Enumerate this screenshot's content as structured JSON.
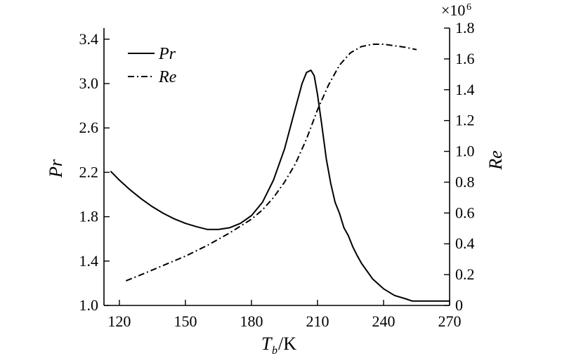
{
  "chart_data": {
    "type": "line",
    "xlabel_main": "T",
    "xlabel_sub": "b",
    "xlabel_unit": "/K",
    "ylabel_left": "Pr",
    "ylabel_right": "Re",
    "right_multiplier_base": "×10",
    "right_multiplier_exp": "6",
    "xlim": [
      113,
      270
    ],
    "ylim_left": [
      1.0,
      3.5
    ],
    "ylim_right": [
      0,
      1.8
    ],
    "x_ticks": [
      120,
      150,
      180,
      210,
      240,
      270
    ],
    "x_tick_labels": [
      "120",
      "150",
      "180",
      "210",
      "240",
      "270"
    ],
    "y_left_ticks": [
      1.0,
      1.4,
      1.8,
      2.2,
      2.6,
      3.0,
      3.4
    ],
    "y_left_tick_labels": [
      "1.0",
      "1.4",
      "1.8",
      "2.2",
      "2.6",
      "3.0",
      "3.4"
    ],
    "y_right_ticks": [
      0,
      0.2,
      0.4,
      0.6,
      0.8,
      1.0,
      1.2,
      1.4,
      1.6,
      1.8
    ],
    "y_right_tick_labels": [
      "0",
      "0.2",
      "0.4",
      "0.6",
      "0.8",
      "1.0",
      "1.2",
      "1.4",
      "1.6",
      "1.8"
    ],
    "grid": false,
    "legend_position": "top-left",
    "series": [
      {
        "name": "Pr",
        "axis": "left",
        "style": "solid",
        "x": [
          116,
          120,
          125,
          130,
          135,
          140,
          145,
          150,
          155,
          160,
          165,
          170,
          175,
          180,
          185,
          190,
          195,
          200,
          203,
          205,
          207,
          208.5,
          210,
          212,
          214,
          216,
          218,
          220,
          222,
          224,
          226,
          228,
          230,
          235,
          240,
          245,
          250,
          253,
          256,
          270
        ],
        "y": [
          2.21,
          2.13,
          2.04,
          1.96,
          1.89,
          1.83,
          1.78,
          1.74,
          1.71,
          1.685,
          1.685,
          1.7,
          1.74,
          1.81,
          1.93,
          2.13,
          2.41,
          2.78,
          3.0,
          3.1,
          3.12,
          3.07,
          2.9,
          2.62,
          2.32,
          2.1,
          1.93,
          1.83,
          1.7,
          1.63,
          1.53,
          1.45,
          1.38,
          1.24,
          1.15,
          1.09,
          1.06,
          1.04,
          1.04,
          1.04
        ]
      },
      {
        "name": "Re",
        "axis": "right",
        "style": "dashdot",
        "x": [
          123,
          130,
          140,
          150,
          160,
          170,
          180,
          185,
          190,
          195,
          200,
          205,
          210,
          215,
          220,
          225,
          230,
          235,
          240,
          245,
          250,
          255
        ],
        "y": [
          0.16,
          0.2,
          0.26,
          0.32,
          0.39,
          0.47,
          0.56,
          0.62,
          0.7,
          0.8,
          0.92,
          1.08,
          1.27,
          1.43,
          1.56,
          1.64,
          1.68,
          1.695,
          1.695,
          1.685,
          1.675,
          1.66
        ]
      }
    ]
  }
}
